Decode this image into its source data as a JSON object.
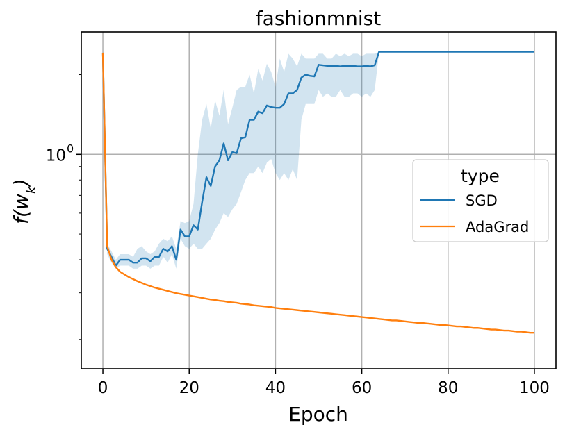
{
  "chart_data": {
    "type": "line",
    "title": "fashionmnist",
    "xlabel": "Epoch",
    "ylabel": "f(w_k)",
    "xlim": [
      -5,
      105
    ],
    "ylim": [
      0.155,
      2.9
    ],
    "yscale": "log",
    "grid": true,
    "x_ticks": [
      0,
      20,
      40,
      60,
      80,
      100
    ],
    "x_tick_labels": [
      "0",
      "20",
      "40",
      "60",
      "80",
      "100"
    ],
    "y_ticks": [
      1.0
    ],
    "y_tick_labels": [
      "10",
      "0"
    ],
    "legend": {
      "title": "type",
      "position": "center-right"
    },
    "x": [
      0,
      1,
      2,
      3,
      4,
      5,
      6,
      7,
      8,
      9,
      10,
      11,
      12,
      13,
      14,
      15,
      16,
      17,
      18,
      19,
      20,
      21,
      22,
      23,
      24,
      25,
      26,
      27,
      28,
      29,
      30,
      31,
      32,
      33,
      34,
      35,
      36,
      37,
      38,
      39,
      40,
      41,
      42,
      43,
      44,
      45,
      46,
      47,
      48,
      49,
      50,
      51,
      52,
      53,
      54,
      55,
      56,
      57,
      58,
      59,
      60,
      61,
      62,
      63,
      64,
      65,
      66,
      67,
      68,
      69,
      70,
      71,
      72,
      73,
      74,
      75,
      76,
      77,
      78,
      79,
      80,
      81,
      82,
      83,
      84,
      85,
      86,
      87,
      88,
      89,
      90,
      91,
      92,
      93,
      94,
      95,
      96,
      97,
      98,
      99,
      100
    ],
    "series": [
      {
        "name": "SGD",
        "color": "#1f77b4",
        "values": [
          2.42,
          0.44,
          0.41,
          0.38,
          0.4,
          0.4,
          0.4,
          0.39,
          0.39,
          0.405,
          0.405,
          0.395,
          0.41,
          0.41,
          0.44,
          0.43,
          0.45,
          0.4,
          0.52,
          0.49,
          0.49,
          0.54,
          0.52,
          0.66,
          0.82,
          0.76,
          0.9,
          0.95,
          1.1,
          0.95,
          1.02,
          1.01,
          1.15,
          1.16,
          1.35,
          1.35,
          1.45,
          1.43,
          1.53,
          1.51,
          1.5,
          1.5,
          1.55,
          1.7,
          1.7,
          1.75,
          1.95,
          2.0,
          1.98,
          1.97,
          2.18,
          2.17,
          2.16,
          2.16,
          2.16,
          2.15,
          2.16,
          2.16,
          2.16,
          2.15,
          2.15,
          2.16,
          2.15,
          2.17,
          2.44,
          2.44,
          2.44,
          2.44,
          2.44,
          2.44,
          2.44,
          2.44,
          2.44,
          2.44,
          2.44,
          2.44,
          2.44,
          2.44,
          2.44,
          2.44,
          2.44,
          2.44,
          2.44,
          2.44,
          2.44,
          2.44,
          2.44,
          2.44,
          2.44,
          2.44,
          2.44,
          2.44,
          2.44,
          2.44,
          2.44,
          2.44,
          2.44,
          2.44,
          2.44,
          2.44,
          2.44
        ],
        "upper": [
          2.42,
          0.46,
          0.43,
          0.4,
          0.42,
          0.42,
          0.42,
          0.41,
          0.44,
          0.45,
          0.43,
          0.42,
          0.43,
          0.46,
          0.48,
          0.47,
          0.49,
          0.44,
          0.56,
          0.55,
          0.56,
          0.65,
          1.0,
          1.35,
          1.55,
          1.25,
          1.6,
          1.4,
          1.75,
          1.3,
          1.5,
          1.75,
          1.8,
          1.8,
          2.0,
          1.7,
          2.1,
          1.9,
          2.2,
          2.05,
          1.8,
          2.3,
          2.05,
          2.4,
          2.3,
          2.15,
          2.4,
          2.3,
          2.3,
          2.3,
          2.4,
          2.4,
          2.3,
          2.3,
          2.4,
          2.35,
          2.4,
          2.35,
          2.4,
          2.4,
          2.35,
          2.4,
          2.4,
          2.4,
          2.44,
          2.44,
          2.44,
          2.44,
          2.44,
          2.44,
          2.44,
          2.44,
          2.44,
          2.44,
          2.44,
          2.44,
          2.44,
          2.44,
          2.44,
          2.44,
          2.44,
          2.44,
          2.44,
          2.44,
          2.44,
          2.44,
          2.44,
          2.44,
          2.44,
          2.44,
          2.44,
          2.44,
          2.44,
          2.44,
          2.44,
          2.44,
          2.44,
          2.44,
          2.44,
          2.44,
          2.44
        ],
        "lower": [
          2.42,
          0.42,
          0.39,
          0.37,
          0.38,
          0.38,
          0.38,
          0.37,
          0.37,
          0.38,
          0.38,
          0.37,
          0.38,
          0.38,
          0.41,
          0.39,
          0.42,
          0.37,
          0.48,
          0.45,
          0.44,
          0.46,
          0.44,
          0.44,
          0.46,
          0.48,
          0.52,
          0.55,
          0.6,
          0.58,
          0.62,
          0.65,
          0.72,
          0.8,
          0.85,
          0.85,
          0.9,
          0.85,
          0.93,
          0.96,
          0.85,
          0.8,
          0.85,
          0.8,
          0.88,
          0.8,
          1.35,
          1.55,
          1.55,
          1.55,
          1.75,
          1.65,
          1.7,
          1.65,
          1.65,
          1.75,
          1.65,
          1.65,
          1.7,
          1.7,
          1.65,
          1.7,
          1.65,
          1.75,
          2.44,
          2.44,
          2.44,
          2.44,
          2.44,
          2.44,
          2.44,
          2.44,
          2.44,
          2.44,
          2.44,
          2.44,
          2.44,
          2.44,
          2.44,
          2.44,
          2.44,
          2.44,
          2.44,
          2.44,
          2.44,
          2.44,
          2.44,
          2.44,
          2.44,
          2.44,
          2.44,
          2.44,
          2.44,
          2.44,
          2.44,
          2.44,
          2.44,
          2.44,
          2.44,
          2.44,
          2.44
        ]
      },
      {
        "name": "AdaGrad",
        "color": "#ff7f0e",
        "values": [
          2.42,
          0.45,
          0.4,
          0.375,
          0.36,
          0.352,
          0.344,
          0.338,
          0.332,
          0.327,
          0.322,
          0.318,
          0.314,
          0.311,
          0.308,
          0.305,
          0.302,
          0.299,
          0.297,
          0.295,
          0.293,
          0.291,
          0.289,
          0.287,
          0.285,
          0.283,
          0.282,
          0.28,
          0.279,
          0.277,
          0.276,
          0.275,
          0.273,
          0.272,
          0.271,
          0.269,
          0.268,
          0.267,
          0.266,
          0.265,
          0.263,
          0.262,
          0.261,
          0.26,
          0.259,
          0.258,
          0.257,
          0.256,
          0.255,
          0.254,
          0.253,
          0.252,
          0.251,
          0.25,
          0.249,
          0.248,
          0.247,
          0.246,
          0.245,
          0.244,
          0.243,
          0.242,
          0.241,
          0.24,
          0.239,
          0.238,
          0.237,
          0.236,
          0.236,
          0.235,
          0.234,
          0.233,
          0.232,
          0.231,
          0.231,
          0.23,
          0.229,
          0.228,
          0.227,
          0.227,
          0.226,
          0.225,
          0.224,
          0.224,
          0.223,
          0.222,
          0.221,
          0.221,
          0.22,
          0.219,
          0.218,
          0.218,
          0.217,
          0.216,
          0.216,
          0.215,
          0.214,
          0.214,
          0.213,
          0.212,
          0.212
        ],
        "spread": 0.003
      }
    ]
  }
}
